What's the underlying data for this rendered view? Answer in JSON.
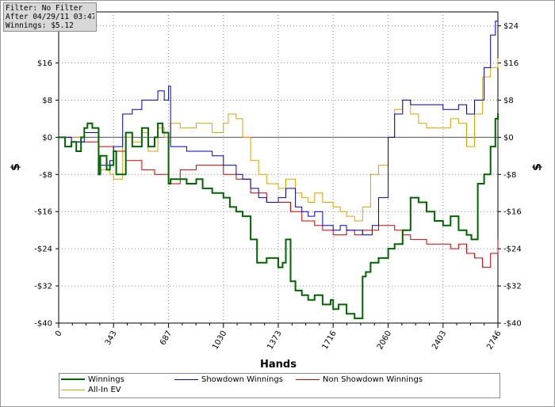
{
  "filter_box": {
    "line1": "Filter: No Filter",
    "line2": "After 04/29/11 03:47:07",
    "line3": "Winnings: $5.12"
  },
  "chart_data": {
    "type": "line",
    "xlabel": "Hands",
    "ylabel_left": "$",
    "ylabel_right": "$",
    "xlim": [
      0,
      2746
    ],
    "ylim": [
      -40,
      27
    ],
    "x_ticks": [
      0,
      343,
      687,
      1030,
      1373,
      1716,
      2060,
      2403,
      2746
    ],
    "y_ticks_left": [
      -40,
      -32,
      -24,
      -16,
      -8,
      0,
      8,
      16
    ],
    "y_ticks_left_labels": [
      "-$40",
      "-$32",
      "-$24",
      "-$16",
      "-$8",
      "$0",
      "$8",
      "$16"
    ],
    "y_ticks_right": [
      -40,
      -32,
      -24,
      -16,
      -8,
      0,
      8,
      16,
      24
    ],
    "y_ticks_right_labels": [
      "-$40",
      "-$32",
      "-$24",
      "-$16",
      "-$8",
      "$0",
      "$8",
      "$16",
      "$24"
    ],
    "grid": true,
    "legend": "bottom",
    "series": [
      {
        "name": "Winnings",
        "color": "#006400",
        "x": [
          0,
          40,
          80,
          110,
          140,
          160,
          180,
          210,
          250,
          260,
          300,
          320,
          343,
          360,
          420,
          460,
          520,
          560,
          600,
          620,
          650,
          687,
          700,
          740,
          800,
          860,
          900,
          960,
          1030,
          1070,
          1110,
          1150,
          1200,
          1240,
          1300,
          1373,
          1400,
          1420,
          1450,
          1480,
          1520,
          1560,
          1600,
          1650,
          1700,
          1716,
          1750,
          1800,
          1850,
          1900,
          1920,
          1950,
          2000,
          2060,
          2100,
          2150,
          2200,
          2250,
          2300,
          2350,
          2403,
          2450,
          2500,
          2550,
          2580,
          2620,
          2660,
          2700,
          2730,
          2746
        ],
        "y": [
          0,
          -2,
          -1,
          -3,
          0,
          2,
          3,
          2,
          -8,
          -4,
          -7,
          -6,
          -3,
          -8,
          1,
          -2,
          2,
          -2,
          0,
          3,
          1,
          -10,
          -9,
          -9,
          -10,
          -9,
          -11,
          -12,
          -13,
          -15,
          -16,
          -17,
          -22,
          -27,
          -26,
          -28,
          -27,
          -22,
          -31,
          -33,
          -34,
          -35,
          -34,
          -36,
          -35,
          -37,
          -36,
          -38,
          -39,
          -30,
          -29,
          -27,
          -26,
          -24,
          -23,
          -20,
          -13,
          -14,
          -16,
          -18,
          -19,
          -17,
          -20,
          -21,
          -22,
          -10,
          -8,
          -2,
          4,
          5.12
        ]
      },
      {
        "name": "Showdown Winnings",
        "color": "#0000c0",
        "x": [
          0,
          80,
          160,
          250,
          320,
          343,
          400,
          460,
          520,
          560,
          620,
          660,
          687,
          700,
          800,
          900,
          960,
          1030,
          1110,
          1150,
          1200,
          1250,
          1300,
          1373,
          1420,
          1480,
          1520,
          1560,
          1600,
          1650,
          1716,
          1760,
          1800,
          1850,
          1900,
          1960,
          2000,
          2060,
          2100,
          2150,
          2200,
          2300,
          2403,
          2450,
          2500,
          2550,
          2600,
          2660,
          2700,
          2730,
          2746
        ],
        "y": [
          0,
          -1,
          1,
          -6,
          -5,
          -2,
          5,
          6,
          8,
          8,
          10,
          8,
          11,
          -2,
          -3,
          -3,
          -4,
          -6,
          -8,
          -9,
          -11,
          -13,
          -14,
          -13,
          -11,
          -15,
          -16,
          -17,
          -16,
          -19,
          -20,
          -19,
          -20,
          -20,
          -21,
          -19,
          -13,
          0,
          5,
          8,
          7,
          7,
          6,
          6,
          7,
          5,
          8,
          15,
          22,
          25,
          24
        ]
      },
      {
        "name": "Non Showdown Winnings",
        "color": "#d00000",
        "x": [
          0,
          80,
          160,
          250,
          320,
          343,
          420,
          520,
          600,
          687,
          760,
          860,
          960,
          1030,
          1110,
          1200,
          1300,
          1373,
          1450,
          1520,
          1600,
          1650,
          1716,
          1800,
          1850,
          1900,
          1960,
          2000,
          2060,
          2100,
          2150,
          2200,
          2250,
          2300,
          2403,
          2450,
          2500,
          2550,
          2600,
          2650,
          2700,
          2746
        ],
        "y": [
          0,
          -1,
          -1,
          -2,
          -2,
          -3,
          -5,
          -7,
          -8,
          -10,
          -7,
          -6,
          -6,
          -8,
          -9,
          -12,
          -14,
          -14,
          -16,
          -18,
          -19,
          -20,
          -21,
          -20,
          -21,
          -20,
          -20,
          -19,
          -19,
          -20,
          -21,
          -22,
          -22,
          -23,
          -23,
          -24,
          -23,
          -25,
          -26,
          -28,
          -25,
          -22
        ]
      },
      {
        "name": "All-In EV",
        "color": "#e0a000",
        "x": [
          0,
          80,
          160,
          250,
          320,
          343,
          400,
          460,
          520,
          560,
          620,
          660,
          687,
          700,
          760,
          860,
          960,
          1030,
          1060,
          1110,
          1150,
          1200,
          1250,
          1300,
          1373,
          1420,
          1480,
          1520,
          1560,
          1600,
          1650,
          1716,
          1760,
          1800,
          1850,
          1900,
          1950,
          2000,
          2060,
          2100,
          2150,
          2200,
          2250,
          2300,
          2403,
          2450,
          2500,
          2550,
          2600,
          2650,
          2700,
          2746
        ],
        "y": [
          0,
          0,
          1,
          -7,
          -8,
          -9,
          0,
          -1,
          1,
          -3,
          2,
          0,
          -1,
          3,
          2,
          3,
          1,
          3,
          5,
          4,
          0,
          -5,
          -8,
          -10,
          -11,
          -9,
          -12,
          -13,
          -14,
          -12,
          -14,
          -15,
          -16,
          -17,
          -18,
          -15,
          -8,
          -6,
          0,
          6,
          8,
          5,
          3,
          2,
          2,
          4,
          3,
          -2,
          5,
          13,
          15,
          17
        ]
      }
    ]
  }
}
